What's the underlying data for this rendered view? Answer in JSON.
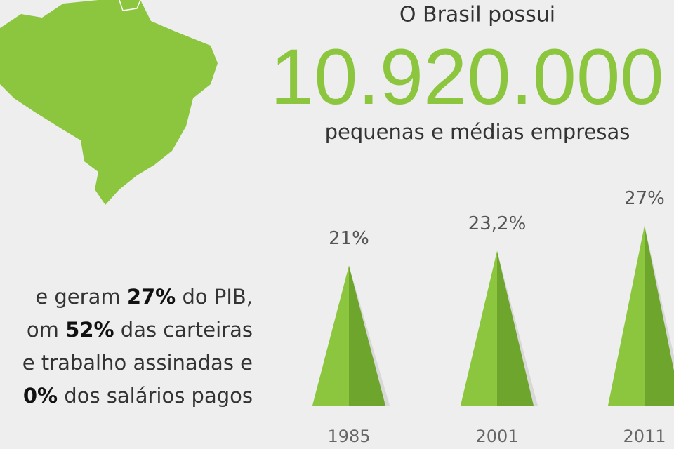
{
  "header": {
    "intro": "O Brasil possui",
    "number": "10.920.000",
    "caption": "pequenas e médias empresas"
  },
  "text": {
    "lines": [
      [
        {
          "text": "e geram ",
          "bold": false
        },
        {
          "text": "27%",
          "bold": true
        },
        {
          "text": " do PIB,",
          "bold": false
        }
      ],
      [
        {
          "text": "om ",
          "bold": false
        },
        {
          "text": "52%",
          "bold": true
        },
        {
          "text": " das carteiras",
          "bold": false
        }
      ],
      [
        {
          "text": "e trabalho assinadas e",
          "bold": false
        }
      ],
      [
        {
          "text": "0%",
          "bold": true
        },
        {
          "text": " dos salários pagos",
          "bold": false
        }
      ]
    ]
  },
  "chart_data": {
    "type": "triangle",
    "categories": [
      "1985",
      "2001",
      "2011"
    ],
    "values": [
      21,
      23.2,
      27
    ],
    "value_labels": [
      "21%",
      "23,2%",
      "27%"
    ],
    "color": "#8cc63f"
  }
}
